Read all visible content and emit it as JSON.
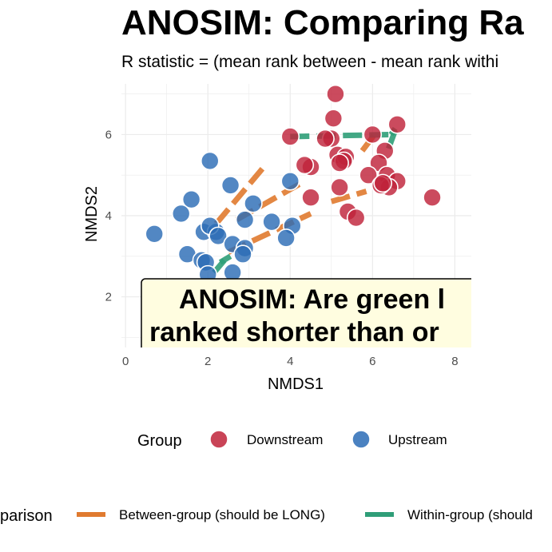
{
  "chart_data": {
    "type": "scatter",
    "title": "ANOSIM: Comparing Ra",
    "subtitle": "R statistic = (mean rank between - mean rank withi",
    "xlabel": "NMDS1",
    "ylabel": "NMDS2",
    "xlim": [
      -0.1,
      8.4
    ],
    "ylim": [
      0.75,
      7.25
    ],
    "x_ticks": [
      "0",
      "2",
      "4",
      "6",
      "8"
    ],
    "y_ticks": [
      "2",
      "4",
      "6"
    ],
    "grid": true,
    "colors": {
      "Downstream": "#c0233a",
      "Upstream": "#2c6cb6",
      "Between": "#e07a2f",
      "Within": "#2f9e78",
      "annotation_fill": "#fffde0"
    },
    "series": [
      {
        "name": "Downstream",
        "points": [
          [
            5.1,
            7.0
          ],
          [
            5.05,
            6.4
          ],
          [
            4.0,
            5.95
          ],
          [
            5.0,
            5.9
          ],
          [
            4.85,
            5.9
          ],
          [
            6.0,
            6.0
          ],
          [
            6.6,
            6.25
          ],
          [
            5.15,
            5.5
          ],
          [
            5.35,
            5.45
          ],
          [
            5.3,
            5.35
          ],
          [
            5.2,
            5.3
          ],
          [
            6.3,
            5.6
          ],
          [
            6.15,
            5.3
          ],
          [
            6.35,
            5.0
          ],
          [
            5.9,
            5.0
          ],
          [
            6.6,
            4.85
          ],
          [
            6.4,
            4.7
          ],
          [
            6.2,
            4.75
          ],
          [
            6.25,
            4.8
          ],
          [
            4.5,
            5.2
          ],
          [
            4.35,
            5.25
          ],
          [
            4.5,
            4.45
          ],
          [
            5.2,
            4.7
          ],
          [
            5.4,
            4.1
          ],
          [
            5.6,
            3.95
          ],
          [
            7.45,
            4.45
          ]
        ]
      },
      {
        "name": "Upstream",
        "points": [
          [
            2.05,
            5.35
          ],
          [
            1.6,
            4.4
          ],
          [
            1.35,
            4.05
          ],
          [
            2.55,
            4.75
          ],
          [
            3.1,
            4.3
          ],
          [
            4.0,
            4.85
          ],
          [
            0.7,
            3.55
          ],
          [
            1.9,
            3.6
          ],
          [
            2.2,
            3.6
          ],
          [
            2.05,
            3.75
          ],
          [
            2.9,
            3.9
          ],
          [
            3.55,
            3.85
          ],
          [
            4.05,
            3.75
          ],
          [
            3.9,
            3.45
          ],
          [
            2.25,
            3.5
          ],
          [
            2.6,
            3.3
          ],
          [
            2.9,
            3.2
          ],
          [
            2.85,
            3.05
          ],
          [
            1.5,
            3.05
          ],
          [
            1.85,
            2.9
          ],
          [
            1.95,
            2.85
          ],
          [
            2.6,
            2.6
          ],
          [
            2.0,
            2.55
          ]
        ]
      }
    ],
    "segments": [
      {
        "group": "Between",
        "from": [
          2.2,
          3.8
        ],
        "to": [
          3.4,
          5.25
        ]
      },
      {
        "group": "Between",
        "from": [
          2.7,
          3.9
        ],
        "to": [
          4.35,
          4.85
        ]
      },
      {
        "group": "Between",
        "from": [
          2.5,
          3.1
        ],
        "to": [
          4.5,
          4.05
        ]
      },
      {
        "group": "Between",
        "from": [
          5.0,
          4.35
        ],
        "to": [
          5.85,
          4.6
        ]
      },
      {
        "group": "Between",
        "from": [
          5.75,
          5.6
        ],
        "to": [
          6.05,
          6.0
        ]
      },
      {
        "group": "Within",
        "from": [
          4.0,
          5.95
        ],
        "to": [
          6.45,
          6.0
        ]
      },
      {
        "group": "Within",
        "from": [
          6.45,
          6.0
        ],
        "to": [
          6.55,
          6.15
        ]
      },
      {
        "group": "Within",
        "from": [
          6.55,
          6.1
        ],
        "to": [
          6.35,
          5.55
        ]
      },
      {
        "group": "Within",
        "from": [
          2.3,
          2.85
        ],
        "to": [
          2.55,
          3.0
        ]
      },
      {
        "group": "Within",
        "from": [
          2.15,
          2.6
        ],
        "to": [
          2.4,
          2.9
        ]
      }
    ],
    "annotation": {
      "line1": "ANOSIM: Are green l",
      "line2": "ranked shorter than or"
    },
    "legend": {
      "group_title": "Group",
      "group_items": [
        "Downstream",
        "Upstream"
      ],
      "comparison_title": "parison",
      "comparison_items": [
        {
          "label": "Between-group (should be LONG)",
          "key": "Between"
        },
        {
          "label": "Within-group (should",
          "key": "Within"
        }
      ]
    }
  }
}
